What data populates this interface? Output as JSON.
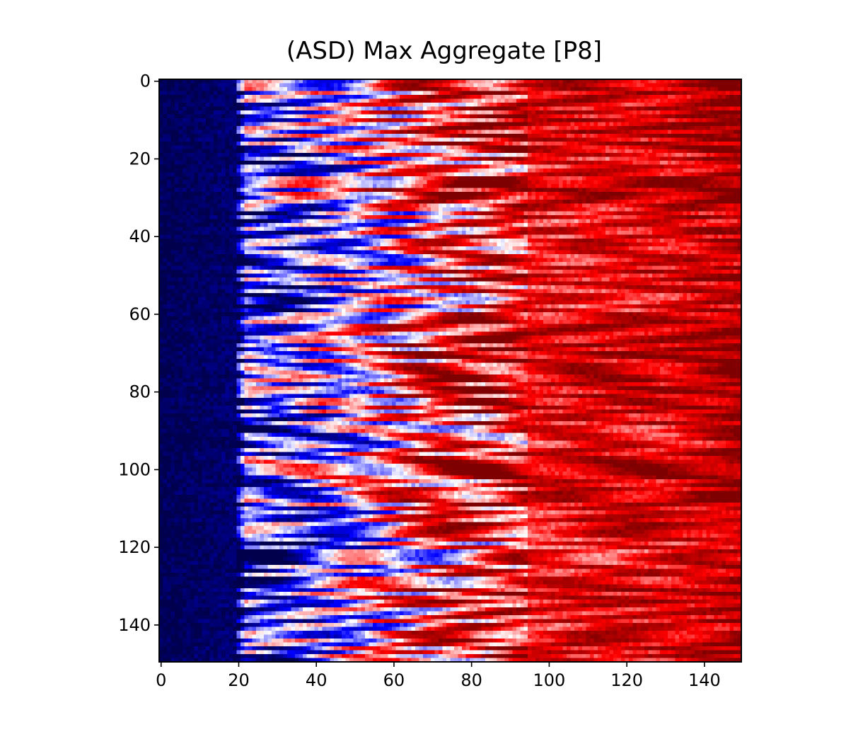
{
  "chart_data": {
    "type": "heatmap",
    "title": "(ASD) Max Aggregate [P8]",
    "xlabel": "",
    "ylabel": "",
    "shape": [
      150,
      150
    ],
    "xlim": [
      -0.5,
      149.5
    ],
    "ylim": [
      149.5,
      -0.5
    ],
    "x_ticks": [
      0,
      20,
      40,
      60,
      80,
      100,
      120,
      140
    ],
    "y_ticks": [
      0,
      20,
      40,
      60,
      80,
      100,
      120,
      140
    ],
    "x_tick_labels": [
      "0",
      "20",
      "40",
      "60",
      "80",
      "100",
      "120",
      "140"
    ],
    "y_tick_labels": [
      "0",
      "20",
      "40",
      "60",
      "80",
      "100",
      "120",
      "140"
    ],
    "colormap": "seismic",
    "colormap_stops": [
      "#00004c",
      "#0000ff",
      "#ffffff",
      "#ff0000",
      "#7f0000"
    ],
    "grid": false,
    "value_profile": {
      "description_of_trend": "columns 0-20 deep blue, 20-45 mixed red/blue streaks, 45-90 blue-white-red transition, 90-149 mostly red with dark red bands",
      "column_anchors": [
        0,
        20,
        22,
        30,
        45,
        60,
        75,
        90,
        110,
        130,
        149
      ],
      "mean_values": [
        -0.98,
        -0.9,
        -0.4,
        -0.45,
        -0.15,
        0.15,
        0.4,
        0.55,
        0.6,
        0.65,
        0.8
      ]
    }
  }
}
